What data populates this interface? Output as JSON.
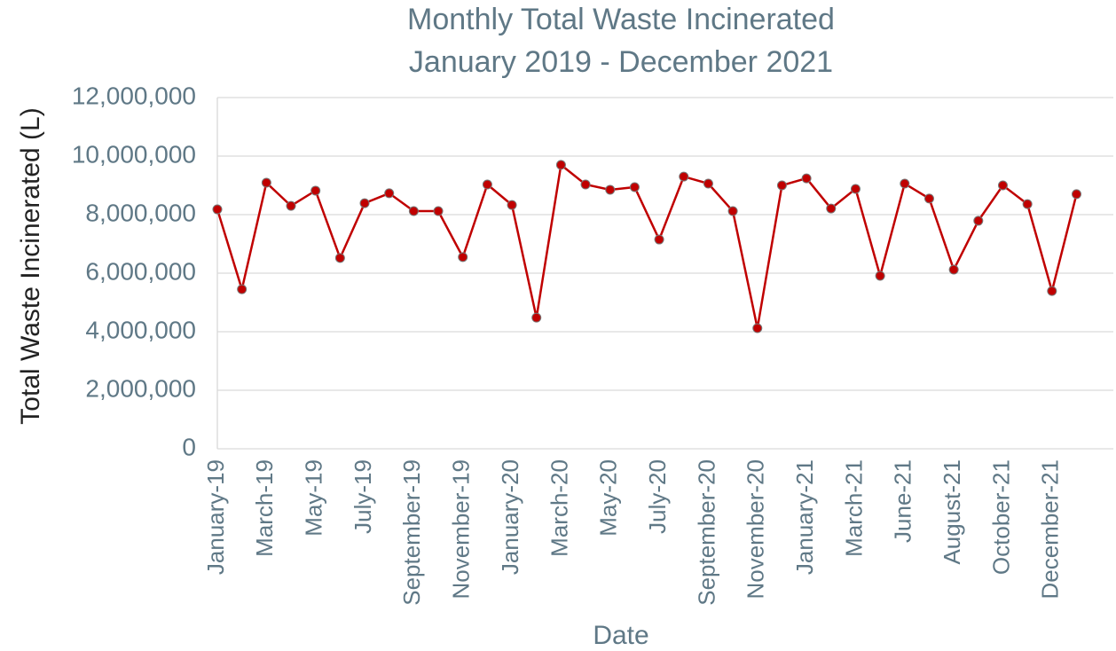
{
  "chart_data": {
    "type": "line",
    "title": "Monthly Total Waste Incinerated",
    "subtitle": "January 2019 - December 2021",
    "x_label": "Date",
    "y_label": "Total Waste Incinerated (L)",
    "categories": [
      "January-19",
      null,
      "March-19",
      null,
      "May-19",
      null,
      "July-19",
      null,
      "September-19",
      null,
      "November-19",
      null,
      "January-20",
      null,
      "March-20",
      null,
      "May-20",
      null,
      "July-20",
      null,
      "September-20",
      null,
      "November-20",
      null,
      "January-21",
      null,
      "March-21",
      null,
      "June-21",
      null,
      "August-21",
      null,
      "October-21",
      null,
      "December-21",
      null
    ],
    "series": [
      {
        "name": "Total Waste Incinerated",
        "color": "#c00000",
        "values": [
          8180000,
          5450000,
          9090000,
          8300000,
          8820000,
          6520000,
          8390000,
          8730000,
          8120000,
          8120000,
          6550000,
          9030000,
          8330000,
          4480000,
          9700000,
          9030000,
          8850000,
          8940000,
          7150000,
          9300000,
          9060000,
          8120000,
          4120000,
          9000000,
          9240000,
          8210000,
          8880000,
          5910000,
          9060000,
          8550000,
          6120000,
          7790000,
          9000000,
          8360000,
          5390000,
          8700000
        ]
      }
    ],
    "ylim": [
      0,
      12000000
    ],
    "yticks": [
      0,
      {
        "value": 2000000,
        "label": "2,000,000"
      },
      {
        "value": 4000000,
        "label": "4,000,000"
      },
      {
        "value": 6000000,
        "label": "6,000,000"
      },
      {
        "value": 8000000,
        "label": "8,000,000"
      },
      {
        "value": 10000000,
        "label": "10,000,000"
      },
      {
        "value": 12000000,
        "label": "12,000,000"
      }
    ],
    "grid": true
  }
}
